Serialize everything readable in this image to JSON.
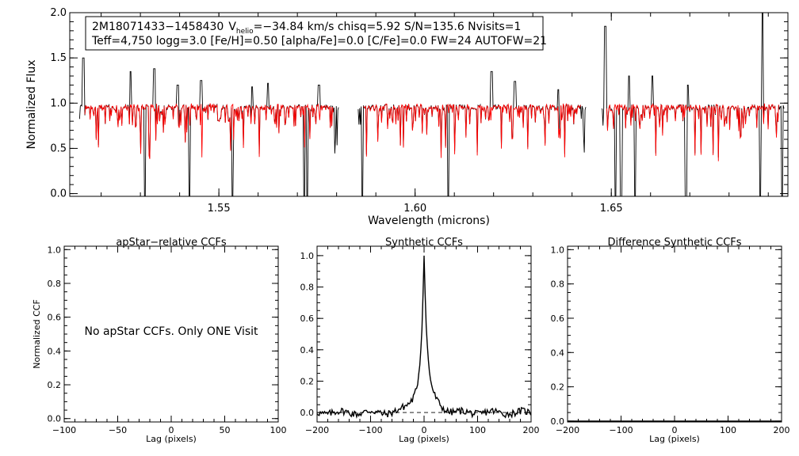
{
  "chart_data": [
    {
      "type": "line",
      "panel": "spectrum",
      "xlabel": "Wavelength (microns)",
      "ylabel": "Normalized Flux",
      "xlim": [
        1.512,
        1.695
      ],
      "ylim": [
        -0.03,
        2.0
      ],
      "x_ticks": [
        1.55,
        1.6,
        1.65
      ],
      "x_tick_labels": [
        "1.55",
        "1.60",
        "1.65"
      ],
      "y_ticks": [
        0.0,
        0.5,
        1.0,
        1.5,
        2.0
      ],
      "y_tick_labels": [
        "0.0",
        "0.5",
        "1.0",
        "1.5",
        "2.0"
      ],
      "chips": [
        [
          1.5145,
          1.5805
        ],
        [
          1.5855,
          1.6435
        ],
        [
          1.6475,
          1.694
        ]
      ],
      "deep_dips": [
        1.5312,
        1.5335,
        1.5425,
        1.5535,
        1.5718,
        1.5725,
        1.5865,
        1.6085,
        1.651,
        1.6525,
        1.6545,
        1.656,
        1.669,
        1.688,
        1.6885,
        1.6935
      ],
      "spikes": [
        [
          1.5155,
          1.5
        ],
        [
          1.5275,
          1.35
        ],
        [
          1.5335,
          1.38
        ],
        [
          1.5395,
          1.2
        ],
        [
          1.5455,
          1.25
        ],
        [
          1.5585,
          1.18
        ],
        [
          1.5625,
          1.22
        ],
        [
          1.5755,
          1.2
        ],
        [
          1.6195,
          1.35
        ],
        [
          1.6255,
          1.24
        ],
        [
          1.6365,
          1.15
        ],
        [
          1.6485,
          1.85
        ],
        [
          1.6545,
          1.3
        ],
        [
          1.6605,
          1.3
        ],
        [
          1.6695,
          1.2
        ],
        [
          1.6885,
          2.0
        ]
      ],
      "series": [
        {
          "name": "",
          "color": "#000000",
          "values": "observed spectrum"
        },
        {
          "name": "",
          "color": "#ff0000",
          "values": "best-fit synthetic"
        }
      ],
      "annotation": {
        "line1_id": "2M18071433−1458430",
        "line1_vhelio_label": "V",
        "line1_vhelio_sub": "helio",
        "line1_rest": "=−34.84 km/s  chisq=5.92  S/N=135.6  Nvisits=1",
        "line2": "Teff=4,750 logg=3.0 [Fe/H]=0.50 [alpha/Fe]=0.0 [C/Fe]=0.0 FW=24 AUTOFW=21"
      }
    },
    {
      "type": "line",
      "panel": "apstar-ccf",
      "title": "apStar−relative CCFs",
      "xlabel": "Lag (pixels)",
      "ylabel": "Normalized CCF",
      "xlim": [
        -100,
        100
      ],
      "ylim": [
        -0.02,
        1.02
      ],
      "x_ticks": [
        -100,
        -50,
        0,
        50,
        100
      ],
      "x_tick_labels": [
        "−100",
        "−50",
        "0",
        "50",
        "100"
      ],
      "y_ticks": [
        0.0,
        0.2,
        0.4,
        0.6,
        0.8,
        1.0
      ],
      "y_tick_labels": [
        "0.0",
        "0.2",
        "0.4",
        "0.6",
        "0.8",
        "1.0"
      ],
      "note": "No apStar CCFs.  Only ONE Visit"
    },
    {
      "type": "line",
      "panel": "synthetic-ccf",
      "title": "Synthetic CCFs",
      "xlabel": "Lag (pixels)",
      "xlim": [
        -200,
        200
      ],
      "ylim": [
        -0.06,
        1.06
      ],
      "x_ticks": [
        -200,
        -100,
        0,
        100,
        200
      ],
      "x_tick_labels": [
        "−200",
        "−100",
        "0",
        "100",
        "200"
      ],
      "y_ticks": [
        0.0,
        0.2,
        0.4,
        0.6,
        0.8,
        1.0
      ],
      "y_tick_labels": [
        "0.0",
        "0.2",
        "0.4",
        "0.6",
        "0.8",
        "1.0"
      ],
      "peak": {
        "x": 0,
        "y": 1.0
      },
      "baseline_dashed": 0.0
    },
    {
      "type": "line",
      "panel": "difference-ccf",
      "title": "Difference Synthetic CCFs",
      "xlabel": "Lag (pixels)",
      "xlim": [
        -200,
        200
      ],
      "ylim": [
        -0.005,
        1.02
      ],
      "x_ticks": [
        -200,
        -100,
        0,
        100,
        200
      ],
      "x_tick_labels": [
        "−200",
        "−100",
        "0",
        "100",
        "200"
      ],
      "y_ticks": [
        0.0,
        0.2,
        0.4,
        0.6,
        0.8,
        1.0
      ],
      "y_tick_labels": [
        "0.0",
        "0.2",
        "0.4",
        "0.6",
        "0.8",
        "1.0"
      ],
      "series": [
        {
          "name": "",
          "values": [
            0,
            0
          ]
        }
      ]
    }
  ]
}
